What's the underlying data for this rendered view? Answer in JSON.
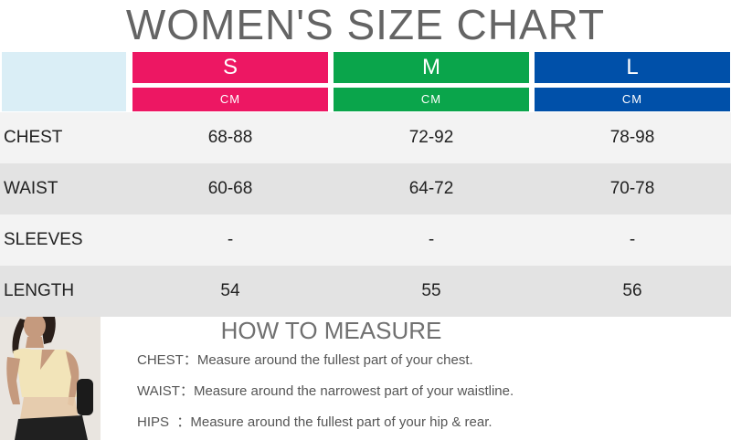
{
  "title": "WOMEN'S SIZE CHART",
  "colors": {
    "s": "#ed1763",
    "m": "#0aa54b",
    "l": "#0050a9",
    "corner": "#daeef6",
    "row_light": "#f3f3f3",
    "row_dark": "#e3e3e3"
  },
  "sizes": [
    {
      "label": "S",
      "unit": "CM"
    },
    {
      "label": "M",
      "unit": "CM"
    },
    {
      "label": "L",
      "unit": "CM"
    }
  ],
  "rows": [
    {
      "label": "CHEST",
      "values": [
        "68-88",
        "72-92",
        "78-98"
      ]
    },
    {
      "label": "WAIST",
      "values": [
        "60-68",
        "64-72",
        "70-78"
      ]
    },
    {
      "label": "SLEEVES",
      "values": [
        "-",
        "-",
        "-"
      ]
    },
    {
      "label": "LENGTH",
      "values": [
        "54",
        "55",
        "56"
      ]
    }
  ],
  "how_to_measure": {
    "title": "HOW TO MEASURE",
    "items": [
      {
        "key": "CHEST：",
        "text": "Measure around the fullest part of your chest."
      },
      {
        "key": "WAIST：",
        "text": "Measure around the narrowest part of your waistline."
      },
      {
        "key": "HIPS  ：",
        "text": "Measure around the fullest part of your hip & rear."
      }
    ]
  }
}
